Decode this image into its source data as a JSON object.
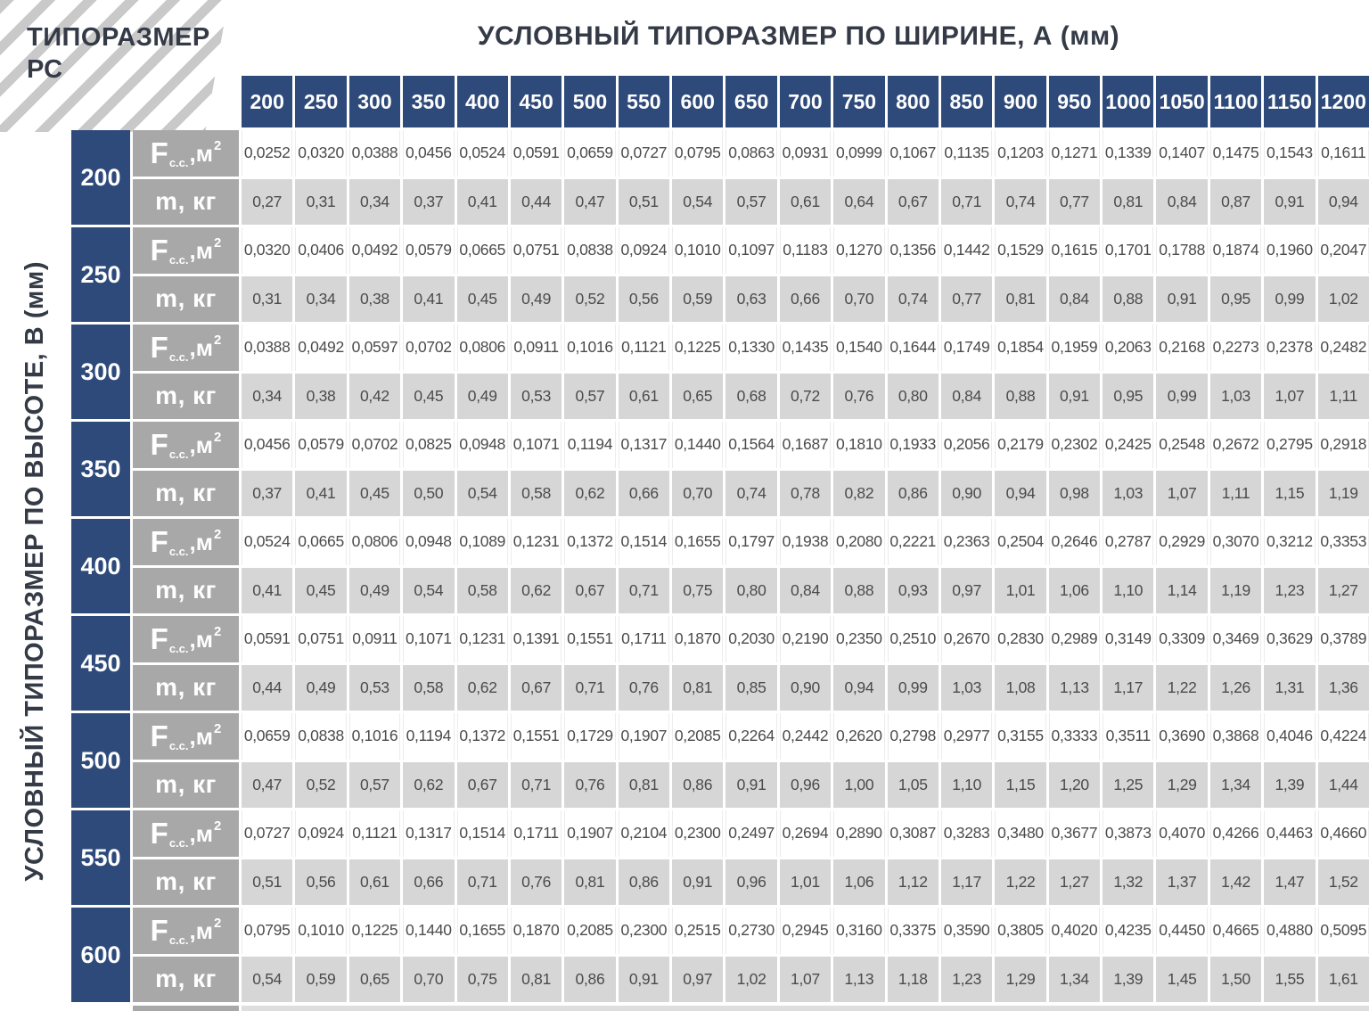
{
  "header": {
    "corner_title": "ТИПОРАЗМЕР РС",
    "width_axis_title": "УСЛОВНЫЙ ТИПОРАЗМЕР ПО ШИРИНЕ, А (мм)",
    "height_axis_title": "УСЛОВНЫЙ ТИПОРАЗМЕР ПО ВЫСОТЕ, В (мм)"
  },
  "labels": {
    "area_label": {
      "symbol": "F",
      "subscript": "с.с.",
      "infix": ",м",
      "superscript": "2"
    },
    "mass_label": "m, кг"
  },
  "colors": {
    "header_navy": "#2e4a7a",
    "label_gray": "#a8a8a8",
    "mass_row_gray": "#d6d6d6",
    "area_row_white": "#ffffff",
    "data_text": "#4b4b4b",
    "title_text": "#343b47",
    "hatch_stripe": "#c9c9c9"
  },
  "chart_data": {
    "type": "table",
    "title": "УСЛОВНЫЙ ТИПОРАЗМЕР ПО ШИРИНЕ, А (мм)",
    "row_axis_title": "УСЛОВНЫЙ ТИПОРАЗМЕР ПО ВЫСОТЕ, В (мм)",
    "columns_width_A_mm": [
      200,
      250,
      300,
      350,
      400,
      450,
      500,
      550,
      600,
      650,
      700,
      750,
      800,
      850,
      900,
      950,
      1000,
      1050,
      1100,
      1150,
      1200
    ],
    "rows": [
      {
        "height_B_mm": 200,
        "F_cc_m2": [
          "0,0252",
          "0,0320",
          "0,0388",
          "0,0456",
          "0,0524",
          "0,0591",
          "0,0659",
          "0,0727",
          "0,0795",
          "0,0863",
          "0,0931",
          "0,0999",
          "0,1067",
          "0,1135",
          "0,1203",
          "0,1271",
          "0,1339",
          "0,1407",
          "0,1475",
          "0,1543",
          "0,1611"
        ],
        "m_kg": [
          "0,27",
          "0,31",
          "0,34",
          "0,37",
          "0,41",
          "0,44",
          "0,47",
          "0,51",
          "0,54",
          "0,57",
          "0,61",
          "0,64",
          "0,67",
          "0,71",
          "0,74",
          "0,77",
          "0,81",
          "0,84",
          "0,87",
          "0,91",
          "0,94"
        ]
      },
      {
        "height_B_mm": 250,
        "F_cc_m2": [
          "0,0320",
          "0,0406",
          "0,0492",
          "0,0579",
          "0,0665",
          "0,0751",
          "0,0838",
          "0,0924",
          "0,1010",
          "0,1097",
          "0,1183",
          "0,1270",
          "0,1356",
          "0,1442",
          "0,1529",
          "0,1615",
          "0,1701",
          "0,1788",
          "0,1874",
          "0,1960",
          "0,2047"
        ],
        "m_kg": [
          "0,31",
          "0,34",
          "0,38",
          "0,41",
          "0,45",
          "0,49",
          "0,52",
          "0,56",
          "0,59",
          "0,63",
          "0,66",
          "0,70",
          "0,74",
          "0,77",
          "0,81",
          "0,84",
          "0,88",
          "0,91",
          "0,95",
          "0,99",
          "1,02"
        ]
      },
      {
        "height_B_mm": 300,
        "F_cc_m2": [
          "0,0388",
          "0,0492",
          "0,0597",
          "0,0702",
          "0,0806",
          "0,0911",
          "0,1016",
          "0,1121",
          "0,1225",
          "0,1330",
          "0,1435",
          "0,1540",
          "0,1644",
          "0,1749",
          "0,1854",
          "0,1959",
          "0,2063",
          "0,2168",
          "0,2273",
          "0,2378",
          "0,2482"
        ],
        "m_kg": [
          "0,34",
          "0,38",
          "0,42",
          "0,45",
          "0,49",
          "0,53",
          "0,57",
          "0,61",
          "0,65",
          "0,68",
          "0,72",
          "0,76",
          "0,80",
          "0,84",
          "0,88",
          "0,91",
          "0,95",
          "0,99",
          "1,03",
          "1,07",
          "1,11"
        ]
      },
      {
        "height_B_mm": 350,
        "F_cc_m2": [
          "0,0456",
          "0,0579",
          "0,0702",
          "0,0825",
          "0,0948",
          "0,1071",
          "0,1194",
          "0,1317",
          "0,1440",
          "0,1564",
          "0,1687",
          "0,1810",
          "0,1933",
          "0,2056",
          "0,2179",
          "0,2302",
          "0,2425",
          "0,2548",
          "0,2672",
          "0,2795",
          "0,2918"
        ],
        "m_kg": [
          "0,37",
          "0,41",
          "0,45",
          "0,50",
          "0,54",
          "0,58",
          "0,62",
          "0,66",
          "0,70",
          "0,74",
          "0,78",
          "0,82",
          "0,86",
          "0,90",
          "0,94",
          "0,98",
          "1,03",
          "1,07",
          "1,11",
          "1,15",
          "1,19"
        ]
      },
      {
        "height_B_mm": 400,
        "F_cc_m2": [
          "0,0524",
          "0,0665",
          "0,0806",
          "0,0948",
          "0,1089",
          "0,1231",
          "0,1372",
          "0,1514",
          "0,1655",
          "0,1797",
          "0,1938",
          "0,2080",
          "0,2221",
          "0,2363",
          "0,2504",
          "0,2646",
          "0,2787",
          "0,2929",
          "0,3070",
          "0,3212",
          "0,3353"
        ],
        "m_kg": [
          "0,41",
          "0,45",
          "0,49",
          "0,54",
          "0,58",
          "0,62",
          "0,67",
          "0,71",
          "0,75",
          "0,80",
          "0,84",
          "0,88",
          "0,93",
          "0,97",
          "1,01",
          "1,06",
          "1,10",
          "1,14",
          "1,19",
          "1,23",
          "1,27"
        ]
      },
      {
        "height_B_mm": 450,
        "F_cc_m2": [
          "0,0591",
          "0,0751",
          "0,0911",
          "0,1071",
          "0,1231",
          "0,1391",
          "0,1551",
          "0,1711",
          "0,1870",
          "0,2030",
          "0,2190",
          "0,2350",
          "0,2510",
          "0,2670",
          "0,2830",
          "0,2989",
          "0,3149",
          "0,3309",
          "0,3469",
          "0,3629",
          "0,3789"
        ],
        "m_kg": [
          "0,44",
          "0,49",
          "0,53",
          "0,58",
          "0,62",
          "0,67",
          "0,71",
          "0,76",
          "0,81",
          "0,85",
          "0,90",
          "0,94",
          "0,99",
          "1,03",
          "1,08",
          "1,13",
          "1,17",
          "1,22",
          "1,26",
          "1,31",
          "1,36"
        ]
      },
      {
        "height_B_mm": 500,
        "F_cc_m2": [
          "0,0659",
          "0,0838",
          "0,1016",
          "0,1194",
          "0,1372",
          "0,1551",
          "0,1729",
          "0,1907",
          "0,2085",
          "0,2264",
          "0,2442",
          "0,2620",
          "0,2798",
          "0,2977",
          "0,3155",
          "0,3333",
          "0,3511",
          "0,3690",
          "0,3868",
          "0,4046",
          "0,4224"
        ],
        "m_kg": [
          "0,47",
          "0,52",
          "0,57",
          "0,62",
          "0,67",
          "0,71",
          "0,76",
          "0,81",
          "0,86",
          "0,91",
          "0,96",
          "1,00",
          "1,05",
          "1,10",
          "1,15",
          "1,20",
          "1,25",
          "1,29",
          "1,34",
          "1,39",
          "1,44"
        ]
      },
      {
        "height_B_mm": 550,
        "F_cc_m2": [
          "0,0727",
          "0,0924",
          "0,1121",
          "0,1317",
          "0,1514",
          "0,1711",
          "0,1907",
          "0,2104",
          "0,2300",
          "0,2497",
          "0,2694",
          "0,2890",
          "0,3087",
          "0,3283",
          "0,3480",
          "0,3677",
          "0,3873",
          "0,4070",
          "0,4266",
          "0,4463",
          "0,4660"
        ],
        "m_kg": [
          "0,51",
          "0,56",
          "0,61",
          "0,66",
          "0,71",
          "0,76",
          "0,81",
          "0,86",
          "0,91",
          "0,96",
          "1,01",
          "1,06",
          "1,12",
          "1,17",
          "1,22",
          "1,27",
          "1,32",
          "1,37",
          "1,42",
          "1,47",
          "1,52"
        ]
      },
      {
        "height_B_mm": 600,
        "F_cc_m2": [
          "0,0795",
          "0,1010",
          "0,1225",
          "0,1440",
          "0,1655",
          "0,1870",
          "0,2085",
          "0,2300",
          "0,2515",
          "0,2730",
          "0,2945",
          "0,3160",
          "0,3375",
          "0,3590",
          "0,3805",
          "0,4020",
          "0,4235",
          "0,4450",
          "0,4665",
          "0,4880",
          "0,5095"
        ],
        "m_kg": [
          "0,54",
          "0,59",
          "0,65",
          "0,70",
          "0,75",
          "0,81",
          "0,86",
          "0,91",
          "0,97",
          "1,02",
          "1,07",
          "1,13",
          "1,18",
          "1,23",
          "1,29",
          "1,34",
          "1,39",
          "1,45",
          "1,50",
          "1,55",
          "1,61"
        ]
      }
    ]
  }
}
